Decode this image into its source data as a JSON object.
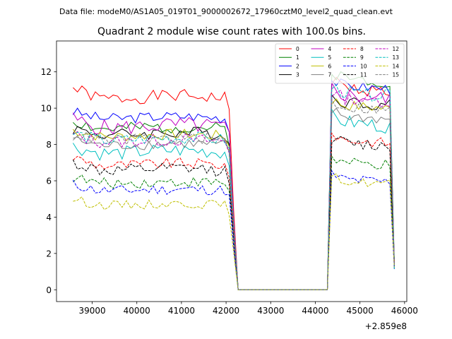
{
  "suptitle": "Data file: modeM0/AS1A05_019T01_9000002672_17960cztM0_level2_quad_clean.evt",
  "chart_data": {
    "type": "line",
    "title": "Quadrant 2 module wise count rates with 100.0s bins.",
    "xlabel": "",
    "ylabel": "",
    "x_offset_label": "+2.859e8",
    "xlim": [
      38200,
      46050
    ],
    "ylim": [
      -0.65,
      13.7
    ],
    "x_ticks": [
      39000,
      40000,
      41000,
      42000,
      43000,
      44000,
      45000,
      46000
    ],
    "y_ticks": [
      0,
      2,
      4,
      6,
      8,
      10,
      12
    ],
    "legend_position": "top-right",
    "segment1": {
      "x_start": 38570,
      "x_end": 42170,
      "step": 100
    },
    "gap": {
      "drop_to": 42270,
      "rise_from": 44170,
      "zero_from": 42270,
      "zero_to": 44270
    },
    "segment2": {
      "x_start": 44370,
      "x_end": 45670,
      "step": 100,
      "final_x": 45770
    },
    "series": [
      {
        "name": "0",
        "color": "#ff0000",
        "dashed": false,
        "level1": 10.6,
        "level2": 11.2,
        "drop1": 0.5,
        "slope": 0.08,
        "amp": 0.35,
        "seed": 1
      },
      {
        "name": "1",
        "color": "#008000",
        "dashed": false,
        "level1": 8.9,
        "level2": 11.7,
        "drop1": 0.4,
        "slope": 0.06,
        "amp": 0.35,
        "seed": 2
      },
      {
        "name": "2",
        "color": "#0000ff",
        "dashed": false,
        "level1": 9.5,
        "level2": 11.3,
        "drop1": 0.3,
        "slope": 0.06,
        "amp": 0.3,
        "seed": 3
      },
      {
        "name": "3",
        "color": "#000000",
        "dashed": false,
        "level1": 8.6,
        "level2": 10.4,
        "drop1": 0.3,
        "slope": 0.06,
        "amp": 0.35,
        "seed": 4
      },
      {
        "name": "4",
        "color": "#c000c0",
        "dashed": false,
        "level1": 9.0,
        "level2": 10.8,
        "drop1": 0.4,
        "slope": 0.08,
        "amp": 0.45,
        "seed": 5
      },
      {
        "name": "5",
        "color": "#00bfbf",
        "dashed": false,
        "level1": 7.6,
        "level2": 9.3,
        "drop1": 0.3,
        "slope": 0.08,
        "amp": 0.4,
        "seed": 6
      },
      {
        "name": "6",
        "color": "#bfbf00",
        "dashed": false,
        "level1": 8.5,
        "level2": 10.2,
        "drop1": 0.3,
        "slope": 0.06,
        "amp": 0.3,
        "seed": 7
      },
      {
        "name": "7",
        "color": "#808080",
        "dashed": false,
        "level1": 8.0,
        "level2": 9.6,
        "drop1": 0.3,
        "slope": 0.06,
        "amp": 0.3,
        "seed": 8
      },
      {
        "name": "8",
        "color": "#ff0000",
        "dashed": true,
        "level1": 6.9,
        "level2": 8.3,
        "drop1": 0.4,
        "slope": 0.06,
        "amp": 0.3,
        "seed": 9
      },
      {
        "name": "9",
        "color": "#008000",
        "dashed": true,
        "level1": 5.9,
        "level2": 7.0,
        "drop1": 0.3,
        "slope": 0.04,
        "amp": 0.3,
        "seed": 10
      },
      {
        "name": "10",
        "color": "#0000ff",
        "dashed": true,
        "level1": 5.5,
        "level2": 6.1,
        "drop1": 0.3,
        "slope": 0.04,
        "amp": 0.3,
        "seed": 11
      },
      {
        "name": "11",
        "color": "#000000",
        "dashed": true,
        "level1": 6.6,
        "level2": 8.1,
        "drop1": 0.4,
        "slope": 0.05,
        "amp": 0.35,
        "seed": 12
      },
      {
        "name": "12",
        "color": "#c000c0",
        "dashed": true,
        "level1": 8.2,
        "level2": 10.6,
        "drop1": 0.3,
        "slope": 0.06,
        "amp": 0.35,
        "seed": 13
      },
      {
        "name": "13",
        "color": "#00bfbf",
        "dashed": true,
        "level1": 8.3,
        "level2": 10.9,
        "drop1": 0.3,
        "slope": 0.06,
        "amp": 0.35,
        "seed": 14
      },
      {
        "name": "14",
        "color": "#bfbf00",
        "dashed": true,
        "level1": 4.7,
        "level2": 6.0,
        "drop1": 0.3,
        "slope": 0.04,
        "amp": 0.25,
        "seed": 15
      },
      {
        "name": "15",
        "color": "#808080",
        "dashed": true,
        "level1": 8.3,
        "level2": 10.1,
        "drop1": 0.3,
        "slope": 0.06,
        "amp": 0.3,
        "seed": 16
      }
    ]
  }
}
